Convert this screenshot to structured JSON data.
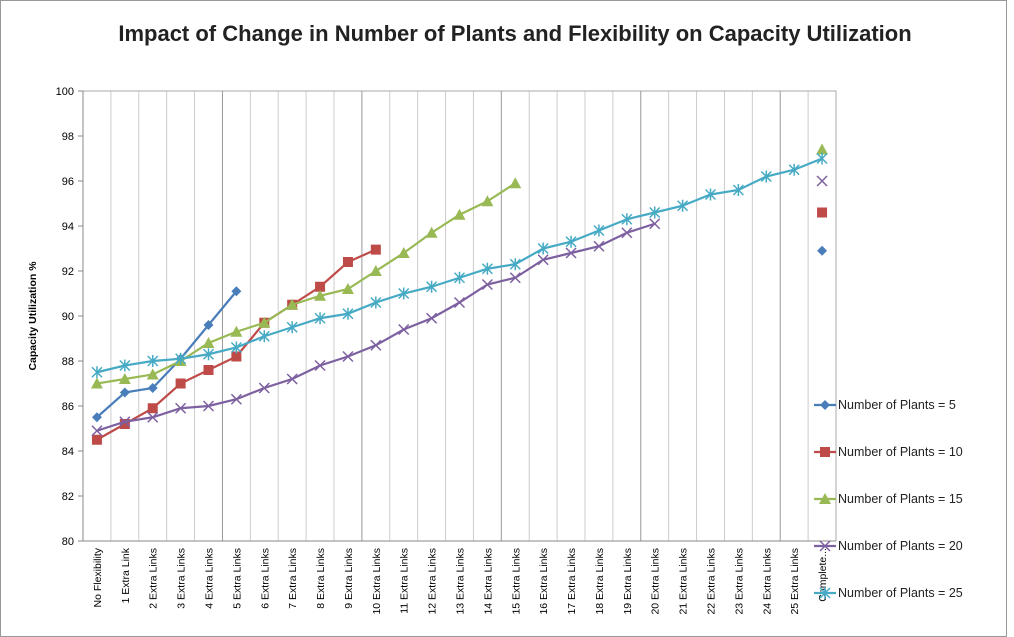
{
  "chart_data": {
    "type": "line",
    "title": "Impact of Change in Number of Plants and Flexibility on Capacity Utilization",
    "y_label": "Capacity Utilization %",
    "categories": [
      "No Flexibility",
      "1 Extra Link",
      "2 Extra Links",
      "3 Extra Links",
      "4 Extra Links",
      "5 Extra Links",
      "6 Extra Links",
      "7 Extra Links",
      "8 Extra Links",
      "9 Extra Links",
      "10 Extra Links",
      "11 Extra Links",
      "12 Extra Links",
      "13 Extra Links",
      "14 Extra Links",
      "15 Extra Links",
      "16 Extra Links",
      "17 Extra Links",
      "18 Extra Links",
      "19 Extra Links",
      "20 Extra Links",
      "21 Extra Links",
      "22 Extra Links",
      "23 Extra Links",
      "24 Extra Links",
      "25 Extra Links",
      "Complete..."
    ],
    "ylim": [
      80,
      100
    ],
    "yticks": [
      80,
      82,
      84,
      86,
      88,
      90,
      92,
      94,
      96,
      98,
      100
    ],
    "legend": "right",
    "series": [
      {
        "name": "Number of Plants = 5",
        "color": "#4a7ebb",
        "marker": "diamond",
        "values": [
          85.5,
          86.6,
          86.8,
          88.1,
          89.6,
          91.1,
          null,
          null,
          null,
          null,
          null,
          null,
          null,
          null,
          null,
          null,
          null,
          null,
          null,
          null,
          null,
          null,
          null,
          null,
          null,
          null,
          92.9
        ]
      },
      {
        "name": "Number of Plants = 10",
        "color": "#be4b48",
        "marker": "square",
        "values": [
          84.5,
          85.2,
          85.9,
          87.0,
          87.6,
          88.2,
          89.7,
          90.5,
          91.3,
          92.4,
          92.95,
          null,
          null,
          null,
          null,
          null,
          null,
          null,
          null,
          null,
          null,
          null,
          null,
          null,
          null,
          null,
          94.6
        ]
      },
      {
        "name": "Number of Plants = 15",
        "color": "#98b954",
        "marker": "triangle",
        "values": [
          87.0,
          87.2,
          87.4,
          88.0,
          88.8,
          89.3,
          89.7,
          90.5,
          90.9,
          91.2,
          92.0,
          92.8,
          93.7,
          94.5,
          95.1,
          95.9,
          null,
          null,
          null,
          null,
          null,
          null,
          null,
          null,
          null,
          null,
          97.4
        ]
      },
      {
        "name": "Number of Plants = 20",
        "color": "#7d60a0",
        "marker": "x",
        "values": [
          84.9,
          85.3,
          85.5,
          85.9,
          86.0,
          86.3,
          86.8,
          87.2,
          87.8,
          88.2,
          88.7,
          89.4,
          89.9,
          90.6,
          91.4,
          91.7,
          92.5,
          92.8,
          93.1,
          93.7,
          94.1,
          null,
          null,
          null,
          null,
          null,
          96.0
        ]
      },
      {
        "name": "Number of Plants = 25",
        "color": "#46aac5",
        "marker": "asterisk",
        "values": [
          87.5,
          87.8,
          88.0,
          88.1,
          88.3,
          88.6,
          89.1,
          89.5,
          89.9,
          90.1,
          90.6,
          91.0,
          91.3,
          91.7,
          92.1,
          92.3,
          93.0,
          93.3,
          93.8,
          94.3,
          94.6,
          94.9,
          95.4,
          95.6,
          96.2,
          96.5,
          97.0
        ]
      }
    ]
  }
}
